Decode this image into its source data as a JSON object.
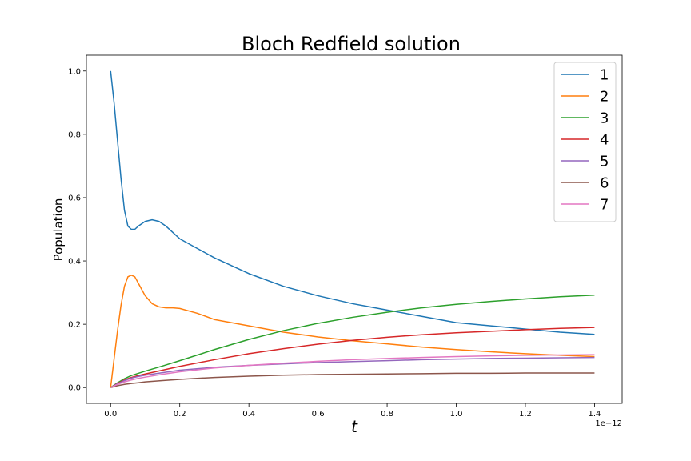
{
  "chart_data": {
    "type": "line",
    "title": "Bloch Redfield solution",
    "xlabel": "t",
    "ylabel": "Population",
    "x_offset_label": "1e−12",
    "xlim": [
      -0.07,
      1.48
    ],
    "ylim": [
      -0.05,
      1.05
    ],
    "xticks": [
      0.0,
      0.2,
      0.4,
      0.6,
      0.8,
      1.0,
      1.2,
      1.4
    ],
    "xtick_labels": [
      "0.0",
      "0.2",
      "0.4",
      "0.6",
      "0.8",
      "1.0",
      "1.2",
      "1.4"
    ],
    "yticks": [
      0.0,
      0.2,
      0.4,
      0.6,
      0.8,
      1.0
    ],
    "ytick_labels": [
      "0.0",
      "0.2",
      "0.4",
      "0.6",
      "0.8",
      "1.0"
    ],
    "grid": false,
    "legend_position": "top-right",
    "series": [
      {
        "name": "1",
        "color": "#1f77b4",
        "x": [
          0,
          0.01,
          0.02,
          0.03,
          0.04,
          0.05,
          0.06,
          0.07,
          0.08,
          0.1,
          0.12,
          0.14,
          0.16,
          0.18,
          0.2,
          0.25,
          0.3,
          0.4,
          0.5,
          0.6,
          0.7,
          0.8,
          0.9,
          1.0,
          1.1,
          1.2,
          1.3,
          1.4
        ],
        "y": [
          1.0,
          0.9,
          0.78,
          0.66,
          0.56,
          0.51,
          0.5,
          0.5,
          0.51,
          0.525,
          0.53,
          0.525,
          0.51,
          0.49,
          0.47,
          0.44,
          0.41,
          0.36,
          0.32,
          0.29,
          0.265,
          0.245,
          0.225,
          0.205,
          0.195,
          0.185,
          0.175,
          0.168
        ]
      },
      {
        "name": "2",
        "color": "#ff7f0e",
        "x": [
          0,
          0.01,
          0.02,
          0.03,
          0.04,
          0.05,
          0.06,
          0.07,
          0.08,
          0.1,
          0.12,
          0.14,
          0.16,
          0.18,
          0.2,
          0.25,
          0.3,
          0.4,
          0.5,
          0.6,
          0.7,
          0.8,
          0.9,
          1.0,
          1.1,
          1.2,
          1.3,
          1.4
        ],
        "y": [
          0.0,
          0.09,
          0.18,
          0.26,
          0.32,
          0.35,
          0.355,
          0.35,
          0.33,
          0.29,
          0.265,
          0.255,
          0.252,
          0.252,
          0.25,
          0.235,
          0.215,
          0.195,
          0.175,
          0.16,
          0.148,
          0.138,
          0.128,
          0.12,
          0.113,
          0.107,
          0.102,
          0.098
        ]
      },
      {
        "name": "3",
        "color": "#2ca02c",
        "x": [
          0,
          0.02,
          0.04,
          0.06,
          0.08,
          0.1,
          0.15,
          0.2,
          0.3,
          0.4,
          0.5,
          0.6,
          0.7,
          0.8,
          0.9,
          1.0,
          1.1,
          1.2,
          1.3,
          1.4
        ],
        "y": [
          0.0,
          0.015,
          0.028,
          0.038,
          0.045,
          0.052,
          0.068,
          0.085,
          0.12,
          0.152,
          0.18,
          0.203,
          0.222,
          0.238,
          0.252,
          0.263,
          0.272,
          0.28,
          0.287,
          0.292
        ]
      },
      {
        "name": "4",
        "color": "#d62728",
        "x": [
          0,
          0.02,
          0.04,
          0.06,
          0.08,
          0.1,
          0.15,
          0.2,
          0.3,
          0.4,
          0.5,
          0.6,
          0.7,
          0.8,
          0.9,
          1.0,
          1.1,
          1.2,
          1.3,
          1.4
        ],
        "y": [
          0.0,
          0.013,
          0.024,
          0.032,
          0.038,
          0.043,
          0.055,
          0.067,
          0.088,
          0.107,
          0.123,
          0.137,
          0.149,
          0.159,
          0.167,
          0.173,
          0.178,
          0.183,
          0.187,
          0.19
        ]
      },
      {
        "name": "5",
        "color": "#9467bd",
        "x": [
          0,
          0.02,
          0.04,
          0.06,
          0.08,
          0.1,
          0.15,
          0.2,
          0.3,
          0.4,
          0.5,
          0.6,
          0.7,
          0.8,
          0.9,
          1.0,
          1.1,
          1.2,
          1.3,
          1.4
        ],
        "y": [
          0.0,
          0.012,
          0.022,
          0.03,
          0.035,
          0.039,
          0.047,
          0.055,
          0.064,
          0.07,
          0.075,
          0.079,
          0.082,
          0.085,
          0.088,
          0.09,
          0.092,
          0.093,
          0.094,
          0.095
        ]
      },
      {
        "name": "6",
        "color": "#8c564b",
        "x": [
          0,
          0.02,
          0.04,
          0.06,
          0.08,
          0.1,
          0.15,
          0.2,
          0.3,
          0.4,
          0.5,
          0.6,
          0.7,
          0.8,
          0.9,
          1.0,
          1.1,
          1.2,
          1.3,
          1.4
        ],
        "y": [
          0.0,
          0.006,
          0.01,
          0.013,
          0.015,
          0.018,
          0.022,
          0.026,
          0.032,
          0.036,
          0.039,
          0.041,
          0.042,
          0.043,
          0.044,
          0.045,
          0.045,
          0.046,
          0.046,
          0.046
        ]
      },
      {
        "name": "7",
        "color": "#e377c2",
        "x": [
          0,
          0.02,
          0.04,
          0.06,
          0.08,
          0.1,
          0.15,
          0.2,
          0.3,
          0.4,
          0.5,
          0.6,
          0.7,
          0.8,
          0.9,
          1.0,
          1.1,
          1.2,
          1.3,
          1.4
        ],
        "y": [
          0.0,
          0.01,
          0.018,
          0.024,
          0.029,
          0.033,
          0.042,
          0.05,
          0.062,
          0.07,
          0.077,
          0.083,
          0.088,
          0.092,
          0.095,
          0.098,
          0.1,
          0.102,
          0.103,
          0.104
        ]
      }
    ]
  }
}
